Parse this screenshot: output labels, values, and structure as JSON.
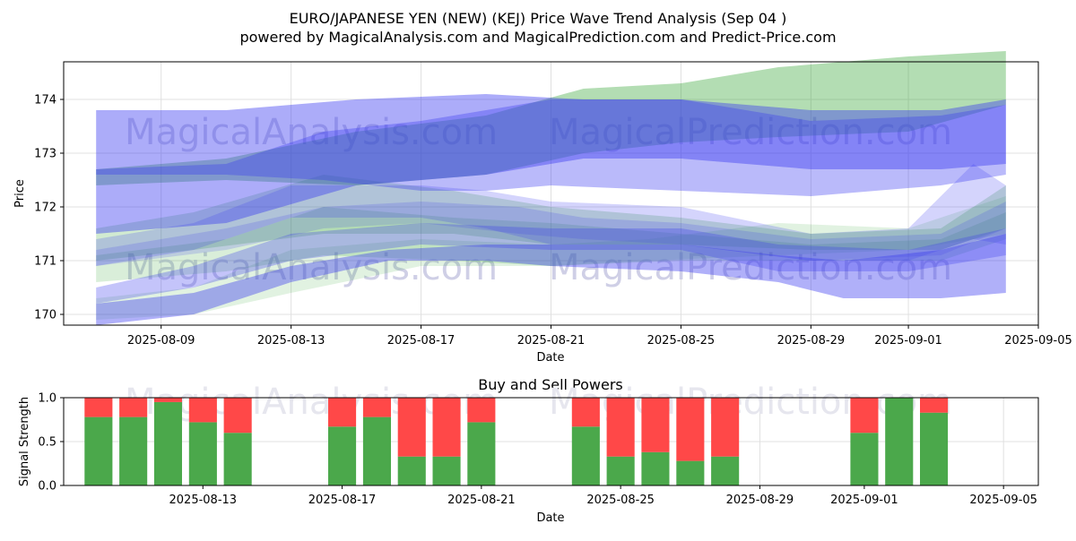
{
  "title_line1": "EURO/JAPANESE YEN (NEW) (KEJ) Price Wave Trend Analysis (Sep 04 )",
  "title_line2": "powered by MagicalAnalysis.com and MagicalPrediction.com and Predict-Price.com",
  "watermarks": [
    "MagicalAnalysis.com",
    "MagicalPrediction.com"
  ],
  "colors": {
    "green": "#2ca02c",
    "blue": "#3a3af0",
    "buy": "#4ba84b",
    "sell": "#ff4848",
    "grid": "#e0e0e0"
  },
  "chart_data": [
    {
      "type": "area",
      "title": "",
      "xlabel": "Date",
      "ylabel": "Price",
      "xlim": [
        "2025-08-06",
        "2025-09-05"
      ],
      "ylim": [
        169.8,
        174.7
      ],
      "xticks": [
        "2025-08-09",
        "2025-08-13",
        "2025-08-17",
        "2025-08-21",
        "2025-08-25",
        "2025-08-29",
        "2025-09-01",
        "2025-09-05"
      ],
      "yticks": [
        170,
        171,
        172,
        173,
        174
      ],
      "series": [
        {
          "name": "green wide band",
          "color": "green",
          "opacity": 0.36,
          "x": [
            "2025-08-07",
            "2025-08-11",
            "2025-08-15",
            "2025-08-19",
            "2025-08-22",
            "2025-08-25",
            "2025-08-28",
            "2025-09-01",
            "2025-09-04"
          ],
          "upper": [
            172.7,
            172.9,
            173.4,
            173.7,
            174.2,
            174.3,
            174.6,
            174.8,
            174.9
          ],
          "lower": [
            172.4,
            172.5,
            172.4,
            172.6,
            173.0,
            173.2,
            173.3,
            173.4,
            173.9
          ]
        },
        {
          "name": "green band 2",
          "color": "green",
          "opacity": 0.22,
          "x": [
            "2025-08-07",
            "2025-08-10",
            "2025-08-14",
            "2025-08-18",
            "2025-08-21",
            "2025-08-25",
            "2025-08-29",
            "2025-09-02",
            "2025-09-04"
          ],
          "upper": [
            171.6,
            171.9,
            172.6,
            172.3,
            172.0,
            171.8,
            171.5,
            171.6,
            172.4
          ],
          "lower": [
            171.0,
            171.2,
            171.5,
            171.5,
            171.3,
            171.3,
            171.2,
            171.2,
            171.6
          ]
        },
        {
          "name": "green band 3",
          "color": "green",
          "opacity": 0.18,
          "x": [
            "2025-08-07",
            "2025-08-11",
            "2025-08-14",
            "2025-08-18",
            "2025-08-21",
            "2025-08-25",
            "2025-08-29",
            "2025-09-02",
            "2025-09-04"
          ],
          "upper": [
            171.1,
            171.4,
            172.0,
            171.8,
            171.7,
            171.5,
            171.3,
            171.4,
            171.9
          ],
          "lower": [
            170.6,
            170.8,
            171.1,
            171.0,
            170.9,
            171.0,
            171.0,
            171.0,
            171.4
          ]
        },
        {
          "name": "green band 4",
          "color": "green",
          "opacity": 0.14,
          "x": [
            "2025-08-07",
            "2025-08-10",
            "2025-08-13",
            "2025-08-17",
            "2025-08-21",
            "2025-08-24",
            "2025-08-28",
            "2025-09-01",
            "2025-09-04"
          ],
          "upper": [
            170.3,
            170.5,
            171.2,
            171.4,
            171.3,
            171.4,
            171.7,
            171.6,
            172.2
          ],
          "lower": [
            169.9,
            170.0,
            170.4,
            170.9,
            170.9,
            171.0,
            171.1,
            171.2,
            171.5
          ]
        },
        {
          "name": "blue wide upper band",
          "color": "blue",
          "opacity": 0.42,
          "x": [
            "2025-08-07",
            "2025-08-11",
            "2025-08-15",
            "2025-08-19",
            "2025-08-22",
            "2025-08-25",
            "2025-08-29",
            "2025-09-02",
            "2025-09-04"
          ],
          "upper": [
            173.8,
            173.8,
            174.0,
            174.1,
            174.0,
            174.0,
            173.8,
            173.8,
            174.0
          ],
          "lower": [
            171.5,
            171.7,
            172.4,
            172.6,
            172.9,
            172.9,
            172.7,
            172.7,
            172.8
          ]
        },
        {
          "name": "blue upper-mid band",
          "color": "blue",
          "opacity": 0.35,
          "x": [
            "2025-08-07",
            "2025-08-11",
            "2025-08-14",
            "2025-08-17",
            "2025-08-19",
            "2025-08-21",
            "2025-08-25",
            "2025-08-29",
            "2025-09-02",
            "2025-09-04"
          ],
          "upper": [
            172.7,
            172.8,
            173.4,
            173.6,
            173.8,
            174.0,
            174.0,
            173.6,
            173.7,
            173.9
          ],
          "lower": [
            172.6,
            172.6,
            172.5,
            172.3,
            172.3,
            172.4,
            172.3,
            172.2,
            172.4,
            172.6
          ]
        },
        {
          "name": "blue middle band",
          "color": "blue",
          "opacity": 0.22,
          "x": [
            "2025-08-07",
            "2025-08-10",
            "2025-08-13",
            "2025-08-17",
            "2025-08-19",
            "2025-08-21",
            "2025-08-25",
            "2025-08-29",
            "2025-09-01",
            "2025-09-03",
            "2025-09-04"
          ],
          "upper": [
            171.4,
            171.7,
            172.4,
            172.4,
            172.3,
            172.1,
            172.0,
            171.5,
            171.6,
            172.8,
            172.4
          ],
          "lower": [
            170.9,
            171.2,
            171.8,
            171.8,
            171.6,
            171.3,
            171.3,
            171.0,
            171.0,
            171.4,
            171.3
          ]
        },
        {
          "name": "blue middle band 2",
          "color": "blue",
          "opacity": 0.18,
          "x": [
            "2025-08-07",
            "2025-08-11",
            "2025-08-14",
            "2025-08-17",
            "2025-08-20",
            "2025-08-22",
            "2025-08-25",
            "2025-08-29",
            "2025-09-02",
            "2025-09-04"
          ],
          "upper": [
            171.2,
            171.6,
            172.0,
            172.1,
            172.0,
            171.8,
            171.7,
            171.4,
            171.5,
            172.1
          ],
          "lower": [
            170.9,
            171.2,
            171.6,
            171.7,
            171.5,
            171.4,
            171.3,
            171.0,
            171.1,
            171.6
          ]
        },
        {
          "name": "blue lower band",
          "color": "blue",
          "opacity": 0.4,
          "x": [
            "2025-08-07",
            "2025-08-10",
            "2025-08-13",
            "2025-08-16",
            "2025-08-19",
            "2025-08-21",
            "2025-08-25",
            "2025-08-28",
            "2025-08-30",
            "2025-09-02",
            "2025-09-04"
          ],
          "upper": [
            170.2,
            170.4,
            170.9,
            171.2,
            171.3,
            171.3,
            171.3,
            171.1,
            171.0,
            171.2,
            171.5
          ],
          "lower": [
            169.8,
            170.0,
            170.6,
            171.0,
            171.0,
            170.9,
            170.8,
            170.6,
            170.3,
            170.3,
            170.4
          ]
        },
        {
          "name": "blue lower-mid band",
          "color": "blue",
          "opacity": 0.3,
          "x": [
            "2025-08-07",
            "2025-08-10",
            "2025-08-13",
            "2025-08-17",
            "2025-08-21",
            "2025-08-25",
            "2025-08-28",
            "2025-09-01",
            "2025-09-04"
          ],
          "upper": [
            170.5,
            170.9,
            171.5,
            171.7,
            171.6,
            171.6,
            171.3,
            171.2,
            171.6
          ],
          "lower": [
            170.2,
            170.5,
            171.0,
            171.3,
            171.2,
            171.2,
            170.8,
            170.8,
            171.1
          ]
        }
      ]
    },
    {
      "type": "bar",
      "title": "Buy and Sell Powers",
      "xlabel": "Date",
      "ylabel": "Signal Strength",
      "xlim": [
        "2025-08-09",
        "2025-09-06"
      ],
      "ylim": [
        0,
        1
      ],
      "xticks": [
        "2025-08-13",
        "2025-08-17",
        "2025-08-21",
        "2025-08-25",
        "2025-08-29",
        "2025-09-01",
        "2025-09-05"
      ],
      "yticks": [
        "0.0",
        "0.5",
        "1.0"
      ],
      "dates": [
        "2025-08-10",
        "2025-08-11",
        "2025-08-12",
        "2025-08-13",
        "2025-08-14",
        "2025-08-17",
        "2025-08-18",
        "2025-08-19",
        "2025-08-20",
        "2025-08-21",
        "2025-08-24",
        "2025-08-25",
        "2025-08-26",
        "2025-08-27",
        "2025-08-28",
        "2025-09-01",
        "2025-09-02",
        "2025-09-03"
      ],
      "buy": [
        0.78,
        0.78,
        0.95,
        0.72,
        0.6,
        0.67,
        0.78,
        0.33,
        0.33,
        0.72,
        0.67,
        0.33,
        0.38,
        0.28,
        0.33,
        0.6,
        1.0,
        0.83
      ],
      "sell": [
        0.22,
        0.22,
        0.05,
        0.28,
        0.4,
        0.33,
        0.22,
        0.67,
        0.67,
        0.28,
        0.33,
        0.67,
        0.62,
        0.72,
        0.67,
        0.4,
        0.0,
        0.17
      ]
    }
  ]
}
